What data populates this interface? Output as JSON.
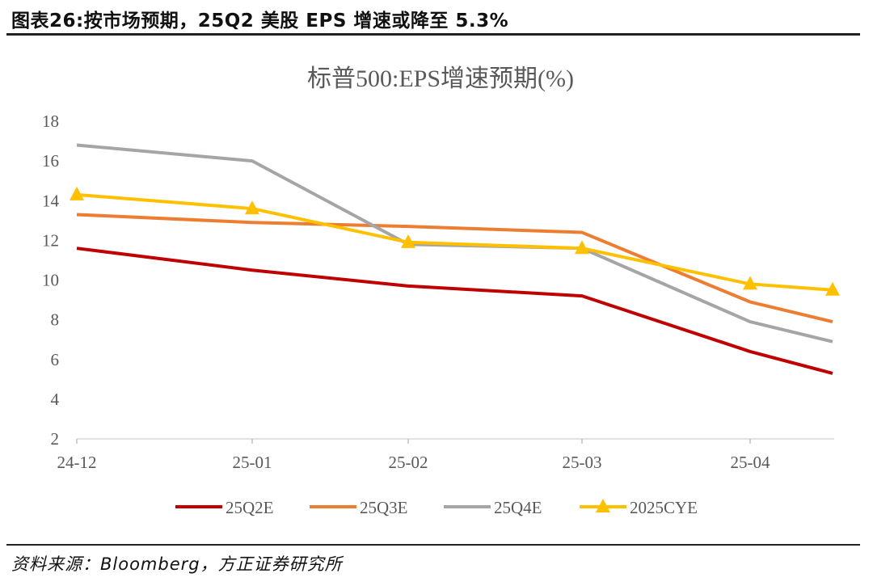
{
  "header": {
    "title": "图表26:按市场预期，25Q2 美股 EPS 增速或降至 5.3%"
  },
  "footer": {
    "source": "资料来源：Bloomberg，方正证券研究所"
  },
  "chart_data": {
    "type": "line",
    "title": "标普500:EPS增速预期(%)",
    "xlabel": "",
    "ylabel": "",
    "categories": [
      "24-12",
      "25-01",
      "25-02",
      "25-03",
      "25-04",
      ""
    ],
    "ylim": [
      2,
      18
    ],
    "yticks": [
      2,
      4,
      6,
      8,
      10,
      12,
      14,
      16,
      18
    ],
    "grid": false,
    "legend": "bottom",
    "series": [
      {
        "name": "25Q2E",
        "color": "#C00000",
        "marker": "none",
        "values": [
          11.6,
          10.5,
          9.7,
          9.2,
          6.4,
          5.3
        ]
      },
      {
        "name": "25Q3E",
        "color": "#ED7D31",
        "marker": "none",
        "values": [
          13.3,
          12.9,
          12.7,
          12.4,
          8.9,
          7.9
        ]
      },
      {
        "name": "25Q4E",
        "color": "#A5A5A5",
        "marker": "none",
        "values": [
          16.8,
          16.0,
          11.8,
          11.6,
          7.9,
          6.9
        ]
      },
      {
        "name": "2025CYE",
        "color": "#FFC000",
        "marker": "triangle",
        "values": [
          14.3,
          13.6,
          11.9,
          11.6,
          9.8,
          9.5
        ]
      }
    ]
  }
}
